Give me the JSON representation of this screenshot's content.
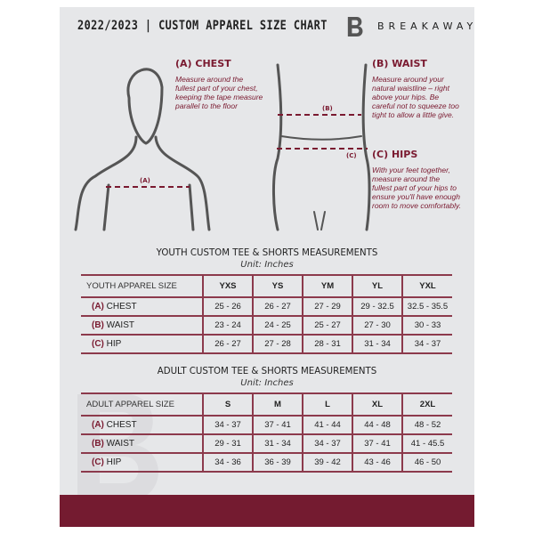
{
  "header": {
    "title": "2022/2023  |  CUSTOM APPAREL SIZE CHART",
    "brand": "BREAKAWAY",
    "logo_letter": "B"
  },
  "guide": {
    "chest": {
      "heading": "(A) CHEST",
      "text": "Measure around the fullest part of your chest, keeping the tape measure parallel to the floor",
      "marker": "(A)"
    },
    "waist": {
      "heading": "(B) WAIST",
      "text": "Measure around your natural waistline – right above your hips. Be careful not to squeeze too tight to allow a little give.",
      "marker": "(B)"
    },
    "hips": {
      "heading": "(C) HIPS",
      "text": "With your feet together, measure around the fullest part of your hips to ensure you'll have enough room to move comfortably.",
      "marker": "(C)"
    }
  },
  "youth": {
    "title": "YOUTH CUSTOM TEE & SHORTS MEASUREMENTS",
    "unit": "Unit: Inches",
    "header": "YOUTH APPAREL SIZE",
    "sizes": [
      "YXS",
      "YS",
      "YM",
      "YL",
      "YXL"
    ],
    "rows": [
      {
        "letter": "(A)",
        "name": "CHEST",
        "values": [
          "25 - 26",
          "26 - 27",
          "27 - 29",
          "29 - 32.5",
          "32.5 - 35.5"
        ]
      },
      {
        "letter": "(B)",
        "name": "WAIST",
        "values": [
          "23 - 24",
          "24 - 25",
          "25 - 27",
          "27 - 30",
          "30 - 33"
        ]
      },
      {
        "letter": "(C)",
        "name": "HIP",
        "values": [
          "26 - 27",
          "27 - 28",
          "28 - 31",
          "31 - 34",
          "34 - 37"
        ]
      }
    ]
  },
  "adult": {
    "title": "ADULT CUSTOM TEE & SHORTS MEASUREMENTS",
    "unit": "Unit: Inches",
    "header": "ADULT APPAREL SIZE",
    "sizes": [
      "S",
      "M",
      "L",
      "XL",
      "2XL"
    ],
    "rows": [
      {
        "letter": "(A)",
        "name": "CHEST",
        "values": [
          "34 - 37",
          "37 - 41",
          "41 - 44",
          "44 - 48",
          "48 - 52"
        ]
      },
      {
        "letter": "(B)",
        "name": "WAIST",
        "values": [
          "29 - 31",
          "31 - 34",
          "34 - 37",
          "37 - 41",
          "41 - 45.5"
        ]
      },
      {
        "letter": "(C)",
        "name": "HIP",
        "values": [
          "34 - 36",
          "36 - 39",
          "39 - 42",
          "43 - 46",
          "46 - 50"
        ]
      }
    ]
  },
  "colors": {
    "accent": "#741b30",
    "background": "#e6e7e9"
  }
}
